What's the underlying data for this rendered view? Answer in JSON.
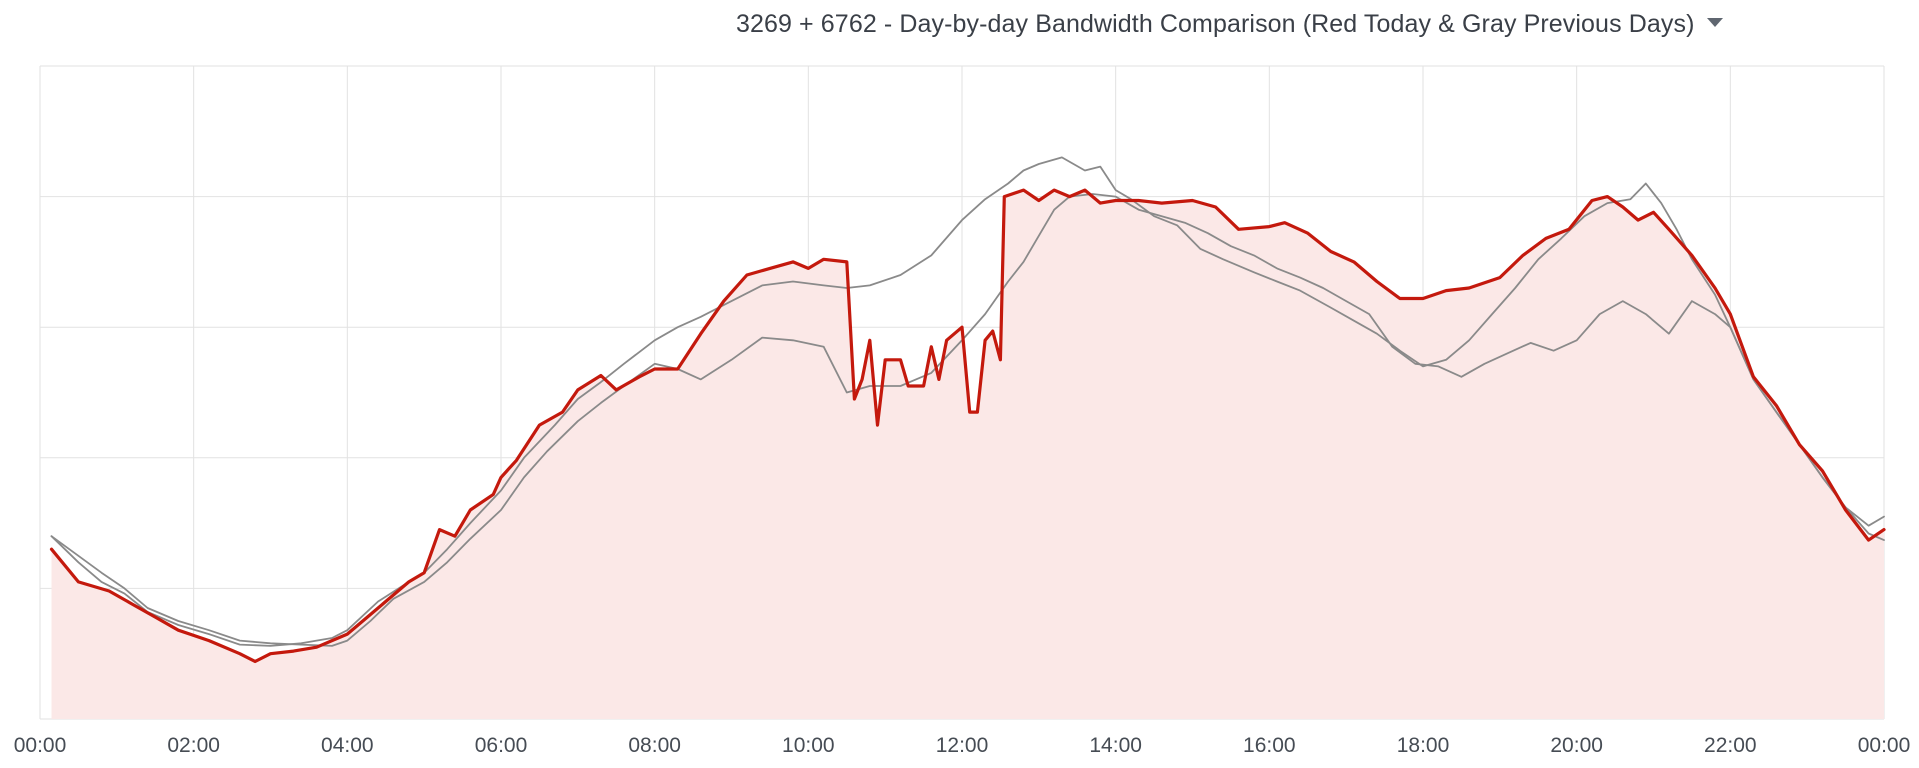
{
  "panel": {
    "title": "3269 + 6762 - Day-by-day Bandwidth Comparison (Red Today & Gray Previous Days)",
    "menu_icon": "chevron-down-icon"
  },
  "colors": {
    "today_line": "#c4190d",
    "today_fill": "#fbe8e7",
    "previous_line": "#8a8a8a",
    "grid": "#e2e2e2",
    "background": "#ffffff"
  },
  "chart_data": {
    "type": "line",
    "title": "3269 + 6762 - Day-by-day Bandwidth Comparison (Red Today & Gray Previous Days)",
    "xlabel": "",
    "ylabel": "",
    "x_unit": "hours",
    "xlim": [
      0,
      24
    ],
    "ylim": [
      0,
      5
    ],
    "y_tick_labels_shown": false,
    "grid": true,
    "legend": "none",
    "x_ticks": [
      {
        "x": 0,
        "label": "00:00"
      },
      {
        "x": 2,
        "label": "02:00"
      },
      {
        "x": 4,
        "label": "04:00"
      },
      {
        "x": 6,
        "label": "06:00"
      },
      {
        "x": 8,
        "label": "08:00"
      },
      {
        "x": 10,
        "label": "10:00"
      },
      {
        "x": 12,
        "label": "12:00"
      },
      {
        "x": 14,
        "label": "14:00"
      },
      {
        "x": 16,
        "label": "16:00"
      },
      {
        "x": 18,
        "label": "18:00"
      },
      {
        "x": 20,
        "label": "20:00"
      },
      {
        "x": 22,
        "label": "22:00"
      },
      {
        "x": 24,
        "label": "00:00"
      }
    ],
    "y_ticks": [
      0,
      1,
      2,
      3,
      4,
      5
    ],
    "series": [
      {
        "name": "",
        "role": "today",
        "fill": true,
        "points": [
          [
            0.15,
            1.3
          ],
          [
            0.5,
            1.05
          ],
          [
            0.9,
            0.98
          ],
          [
            1.2,
            0.88
          ],
          [
            1.5,
            0.78
          ],
          [
            1.8,
            0.68
          ],
          [
            2.2,
            0.6
          ],
          [
            2.6,
            0.5
          ],
          [
            2.8,
            0.44
          ],
          [
            3.0,
            0.5
          ],
          [
            3.3,
            0.52
          ],
          [
            3.6,
            0.55
          ],
          [
            4.0,
            0.65
          ],
          [
            4.4,
            0.85
          ],
          [
            4.8,
            1.05
          ],
          [
            5.0,
            1.12
          ],
          [
            5.2,
            1.45
          ],
          [
            5.4,
            1.4
          ],
          [
            5.6,
            1.6
          ],
          [
            5.9,
            1.72
          ],
          [
            6.0,
            1.85
          ],
          [
            6.2,
            1.98
          ],
          [
            6.5,
            2.25
          ],
          [
            6.8,
            2.35
          ],
          [
            7.0,
            2.52
          ],
          [
            7.3,
            2.63
          ],
          [
            7.5,
            2.52
          ],
          [
            7.8,
            2.62
          ],
          [
            8.0,
            2.68
          ],
          [
            8.3,
            2.68
          ],
          [
            8.6,
            2.95
          ],
          [
            8.9,
            3.2
          ],
          [
            9.2,
            3.4
          ],
          [
            9.5,
            3.45
          ],
          [
            9.8,
            3.5
          ],
          [
            10.0,
            3.45
          ],
          [
            10.2,
            3.52
          ],
          [
            10.5,
            3.5
          ],
          [
            10.6,
            2.45
          ],
          [
            10.7,
            2.6
          ],
          [
            10.8,
            2.9
          ],
          [
            10.9,
            2.25
          ],
          [
            11.0,
            2.75
          ],
          [
            11.2,
            2.75
          ],
          [
            11.3,
            2.55
          ],
          [
            11.5,
            2.55
          ],
          [
            11.6,
            2.85
          ],
          [
            11.7,
            2.6
          ],
          [
            11.8,
            2.9
          ],
          [
            12.0,
            3.0
          ],
          [
            12.1,
            2.35
          ],
          [
            12.2,
            2.35
          ],
          [
            12.3,
            2.9
          ],
          [
            12.4,
            2.97
          ],
          [
            12.5,
            2.75
          ],
          [
            12.55,
            4.0
          ],
          [
            12.8,
            4.05
          ],
          [
            13.0,
            3.97
          ],
          [
            13.2,
            4.05
          ],
          [
            13.4,
            4.0
          ],
          [
            13.6,
            4.05
          ],
          [
            13.8,
            3.95
          ],
          [
            14.0,
            3.97
          ],
          [
            14.3,
            3.97
          ],
          [
            14.6,
            3.95
          ],
          [
            15.0,
            3.97
          ],
          [
            15.3,
            3.92
          ],
          [
            15.6,
            3.75
          ],
          [
            16.0,
            3.77
          ],
          [
            16.2,
            3.8
          ],
          [
            16.5,
            3.72
          ],
          [
            16.8,
            3.58
          ],
          [
            17.1,
            3.5
          ],
          [
            17.4,
            3.35
          ],
          [
            17.7,
            3.22
          ],
          [
            18.0,
            3.22
          ],
          [
            18.3,
            3.28
          ],
          [
            18.6,
            3.3
          ],
          [
            19.0,
            3.38
          ],
          [
            19.3,
            3.55
          ],
          [
            19.6,
            3.68
          ],
          [
            19.9,
            3.75
          ],
          [
            20.2,
            3.97
          ],
          [
            20.4,
            4.0
          ],
          [
            20.6,
            3.92
          ],
          [
            20.8,
            3.82
          ],
          [
            21.0,
            3.88
          ],
          [
            21.2,
            3.75
          ],
          [
            21.5,
            3.55
          ],
          [
            21.8,
            3.3
          ],
          [
            22.0,
            3.1
          ],
          [
            22.3,
            2.62
          ],
          [
            22.6,
            2.4
          ],
          [
            22.9,
            2.1
          ],
          [
            23.2,
            1.9
          ],
          [
            23.5,
            1.6
          ],
          [
            23.8,
            1.37
          ],
          [
            24.0,
            1.45
          ]
        ]
      },
      {
        "name": "",
        "role": "previous_day",
        "fill": false,
        "points": [
          [
            0.15,
            1.4
          ],
          [
            0.5,
            1.2
          ],
          [
            0.8,
            1.05
          ],
          [
            1.1,
            0.96
          ],
          [
            1.4,
            0.82
          ],
          [
            1.8,
            0.72
          ],
          [
            2.2,
            0.65
          ],
          [
            2.6,
            0.57
          ],
          [
            3.0,
            0.56
          ],
          [
            3.4,
            0.58
          ],
          [
            3.8,
            0.62
          ],
          [
            4.0,
            0.68
          ],
          [
            4.4,
            0.9
          ],
          [
            4.8,
            1.05
          ],
          [
            5.0,
            1.12
          ],
          [
            5.3,
            1.3
          ],
          [
            5.6,
            1.5
          ],
          [
            6.0,
            1.75
          ],
          [
            6.3,
            2.0
          ],
          [
            6.7,
            2.25
          ],
          [
            7.0,
            2.45
          ],
          [
            7.3,
            2.58
          ],
          [
            7.6,
            2.72
          ],
          [
            8.0,
            2.9
          ],
          [
            8.3,
            3.0
          ],
          [
            8.6,
            3.08
          ],
          [
            9.0,
            3.2
          ],
          [
            9.4,
            3.32
          ],
          [
            9.8,
            3.35
          ],
          [
            10.2,
            3.32
          ],
          [
            10.5,
            3.3
          ],
          [
            10.8,
            3.32
          ],
          [
            11.2,
            3.4
          ],
          [
            11.6,
            3.55
          ],
          [
            12.0,
            3.82
          ],
          [
            12.3,
            3.98
          ],
          [
            12.6,
            4.1
          ],
          [
            12.8,
            4.2
          ],
          [
            13.0,
            4.25
          ],
          [
            13.3,
            4.3
          ],
          [
            13.6,
            4.2
          ],
          [
            13.8,
            4.23
          ],
          [
            14.0,
            4.05
          ],
          [
            14.2,
            3.98
          ],
          [
            14.5,
            3.85
          ],
          [
            14.8,
            3.78
          ],
          [
            15.1,
            3.6
          ],
          [
            15.4,
            3.52
          ],
          [
            15.8,
            3.42
          ],
          [
            16.1,
            3.35
          ],
          [
            16.4,
            3.28
          ],
          [
            16.8,
            3.15
          ],
          [
            17.1,
            3.05
          ],
          [
            17.4,
            2.95
          ],
          [
            17.7,
            2.82
          ],
          [
            18.0,
            2.7
          ],
          [
            18.3,
            2.75
          ],
          [
            18.6,
            2.9
          ],
          [
            18.9,
            3.1
          ],
          [
            19.2,
            3.3
          ],
          [
            19.5,
            3.52
          ],
          [
            19.8,
            3.68
          ],
          [
            20.1,
            3.85
          ],
          [
            20.4,
            3.95
          ],
          [
            20.7,
            3.98
          ],
          [
            20.9,
            4.1
          ],
          [
            21.1,
            3.95
          ],
          [
            21.3,
            3.75
          ],
          [
            21.5,
            3.52
          ],
          [
            21.8,
            3.25
          ],
          [
            22.0,
            3.0
          ],
          [
            22.3,
            2.6
          ],
          [
            22.6,
            2.35
          ],
          [
            22.9,
            2.1
          ],
          [
            23.2,
            1.85
          ],
          [
            23.5,
            1.62
          ],
          [
            23.8,
            1.48
          ],
          [
            24.0,
            1.55
          ]
        ]
      },
      {
        "name": "",
        "role": "previous_day",
        "fill": false,
        "points": [
          [
            0.15,
            1.4
          ],
          [
            0.5,
            1.25
          ],
          [
            0.8,
            1.12
          ],
          [
            1.1,
            1.0
          ],
          [
            1.4,
            0.85
          ],
          [
            1.8,
            0.75
          ],
          [
            2.2,
            0.68
          ],
          [
            2.6,
            0.6
          ],
          [
            3.0,
            0.58
          ],
          [
            3.4,
            0.57
          ],
          [
            3.8,
            0.56
          ],
          [
            4.0,
            0.6
          ],
          [
            4.3,
            0.75
          ],
          [
            4.6,
            0.92
          ],
          [
            5.0,
            1.05
          ],
          [
            5.3,
            1.2
          ],
          [
            5.6,
            1.38
          ],
          [
            6.0,
            1.6
          ],
          [
            6.3,
            1.85
          ],
          [
            6.6,
            2.05
          ],
          [
            7.0,
            2.28
          ],
          [
            7.3,
            2.42
          ],
          [
            7.6,
            2.55
          ],
          [
            8.0,
            2.72
          ],
          [
            8.3,
            2.68
          ],
          [
            8.6,
            2.6
          ],
          [
            9.0,
            2.75
          ],
          [
            9.4,
            2.92
          ],
          [
            9.8,
            2.9
          ],
          [
            10.2,
            2.85
          ],
          [
            10.5,
            2.5
          ],
          [
            10.8,
            2.55
          ],
          [
            11.2,
            2.55
          ],
          [
            11.6,
            2.65
          ],
          [
            12.0,
            2.9
          ],
          [
            12.3,
            3.1
          ],
          [
            12.6,
            3.35
          ],
          [
            12.8,
            3.5
          ],
          [
            13.0,
            3.7
          ],
          [
            13.2,
            3.9
          ],
          [
            13.4,
            4.0
          ],
          [
            13.7,
            4.02
          ],
          [
            14.0,
            4.0
          ],
          [
            14.3,
            3.9
          ],
          [
            14.6,
            3.85
          ],
          [
            14.9,
            3.8
          ],
          [
            15.2,
            3.72
          ],
          [
            15.5,
            3.62
          ],
          [
            15.8,
            3.55
          ],
          [
            16.1,
            3.45
          ],
          [
            16.4,
            3.38
          ],
          [
            16.7,
            3.3
          ],
          [
            17.0,
            3.2
          ],
          [
            17.3,
            3.1
          ],
          [
            17.6,
            2.85
          ],
          [
            17.9,
            2.72
          ],
          [
            18.2,
            2.7
          ],
          [
            18.5,
            2.62
          ],
          [
            18.8,
            2.72
          ],
          [
            19.1,
            2.8
          ],
          [
            19.4,
            2.88
          ],
          [
            19.7,
            2.82
          ],
          [
            20.0,
            2.9
          ],
          [
            20.3,
            3.1
          ],
          [
            20.6,
            3.2
          ],
          [
            20.9,
            3.1
          ],
          [
            21.2,
            2.95
          ],
          [
            21.5,
            3.2
          ],
          [
            21.8,
            3.1
          ],
          [
            22.0,
            3.0
          ],
          [
            22.3,
            2.6
          ],
          [
            22.6,
            2.35
          ],
          [
            22.9,
            2.1
          ],
          [
            23.2,
            1.85
          ],
          [
            23.5,
            1.62
          ],
          [
            23.8,
            1.42
          ],
          [
            24.0,
            1.37
          ]
        ]
      }
    ]
  }
}
